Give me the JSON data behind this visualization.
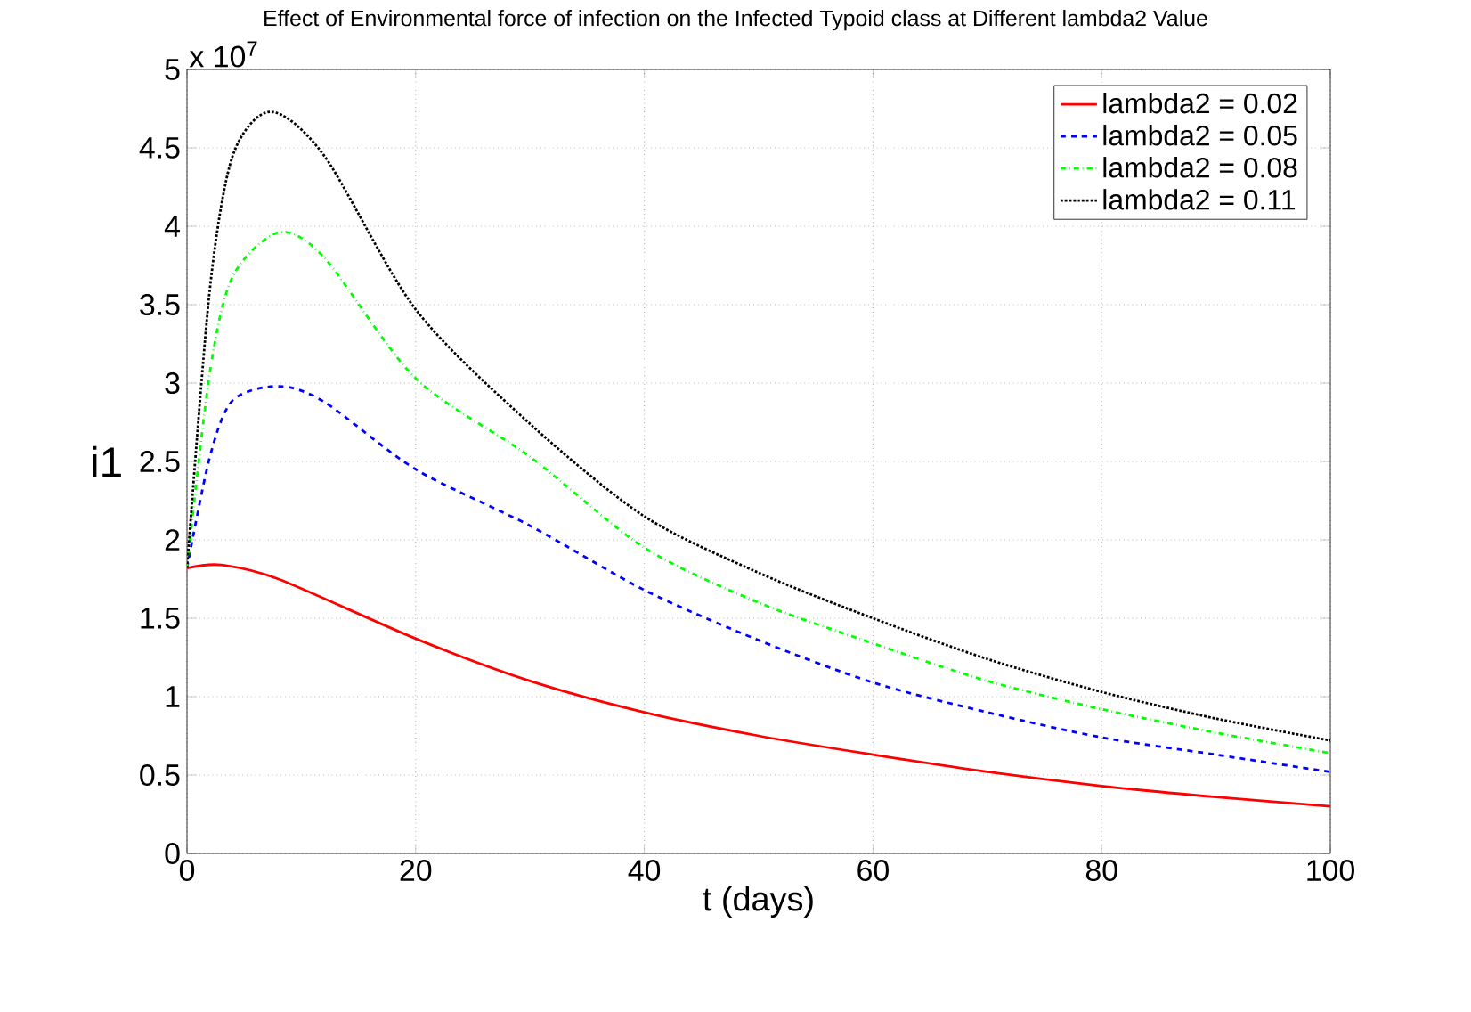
{
  "chart_data": {
    "type": "line",
    "title": "Effect of Environmental force of infection on the Infected Typoid class at Different lambda2 Value",
    "xlabel": "t (days)",
    "ylabel": "i1",
    "annotations": [
      "x 10$^{7}$"
    ],
    "xlim": [
      0,
      100
    ],
    "ylim": [
      0,
      5
    ],
    "xticks": [
      0,
      20,
      40,
      60,
      80,
      100
    ],
    "yticks": [
      0,
      0.5,
      1,
      1.5,
      2,
      2.5,
      3,
      3.5,
      4,
      4.5,
      5
    ],
    "grid": true,
    "legend": "top right",
    "series": [
      {
        "name": "lambda2 = 0.02",
        "color": "#ff0000",
        "line_style": "solid",
        "x": [
          0,
          3,
          8,
          20,
          30,
          40,
          50,
          60,
          70,
          80,
          90,
          100
        ],
        "values": [
          1.82,
          1.84,
          1.75,
          1.37,
          1.1,
          0.9,
          0.75,
          0.63,
          0.52,
          0.43,
          0.36,
          0.3
        ]
      },
      {
        "name": "lambda2 = 0.05",
        "color": "#0000ff",
        "line_style": "dashed",
        "x": [
          0,
          2,
          4,
          8,
          12,
          20,
          30,
          40,
          50,
          60,
          70,
          80,
          90,
          100
        ],
        "values": [
          1.82,
          2.53,
          2.89,
          2.98,
          2.88,
          2.45,
          2.09,
          1.68,
          1.36,
          1.09,
          0.9,
          0.74,
          0.63,
          0.52
        ]
      },
      {
        "name": "lambda2 = 0.08",
        "color": "#00ff00",
        "line_style": "dashdot",
        "x": [
          0,
          2,
          4,
          8,
          12,
          20,
          30,
          40,
          50,
          60,
          70,
          80,
          90,
          100
        ],
        "values": [
          1.82,
          3.07,
          3.68,
          3.96,
          3.8,
          3.03,
          2.53,
          1.95,
          1.6,
          1.34,
          1.1,
          0.92,
          0.77,
          0.64
        ]
      },
      {
        "name": "lambda2 = 0.11",
        "color": "#000000",
        "line_style": "dotted",
        "x": [
          0,
          2,
          4,
          7.3,
          12,
          20,
          30,
          40,
          50,
          60,
          70,
          80,
          90,
          100
        ],
        "values": [
          1.82,
          3.6,
          4.45,
          4.73,
          4.45,
          3.47,
          2.74,
          2.15,
          1.79,
          1.5,
          1.24,
          1.03,
          0.86,
          0.72
        ]
      }
    ]
  }
}
